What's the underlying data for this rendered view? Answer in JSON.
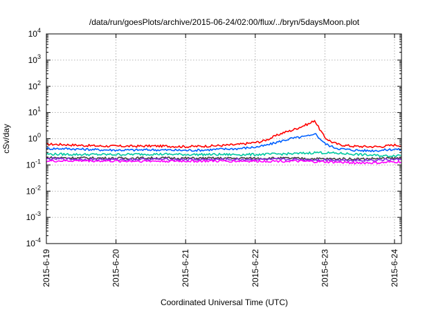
{
  "chart_data": {
    "type": "line",
    "title": "/data/run/goesPlots/archive/2015-06-24/02:00/flux/../bryn/5daysMoon.plot",
    "xlabel": "Coordinated Universal Time (UTC)",
    "ylabel": "cSv/day",
    "yscale": "log",
    "ylim": [
      0.0001,
      10000
    ],
    "xlim": [
      0,
      5.1
    ],
    "grid": true,
    "y_ticks": [
      {
        "value": 0.0001,
        "base": "10",
        "exp": "-4"
      },
      {
        "value": 0.001,
        "base": "10",
        "exp": "-3"
      },
      {
        "value": 0.01,
        "base": "10",
        "exp": "-2"
      },
      {
        "value": 0.1,
        "base": "10",
        "exp": "-1"
      },
      {
        "value": 1,
        "base": "10",
        "exp": "0"
      },
      {
        "value": 10,
        "base": "10",
        "exp": "1"
      },
      {
        "value": 100,
        "base": "10",
        "exp": "2"
      },
      {
        "value": 1000,
        "base": "10",
        "exp": "3"
      },
      {
        "value": 10000,
        "base": "10",
        "exp": "4"
      }
    ],
    "x_ticks": [
      {
        "value": 0,
        "label": "2015-6-19"
      },
      {
        "value": 1,
        "label": "2015-6-20"
      },
      {
        "value": 2,
        "label": "2015-6-21"
      },
      {
        "value": 3,
        "label": "2015-6-22"
      },
      {
        "value": 4,
        "label": "2015-6-23"
      },
      {
        "value": 5,
        "label": "2015-6-24"
      }
    ],
    "series": [
      {
        "color": "#ff0000",
        "x": [
          0,
          0.25,
          0.5,
          0.75,
          1.0,
          1.25,
          1.5,
          1.75,
          2.0,
          2.25,
          2.5,
          2.75,
          3.0,
          3.1,
          3.2,
          3.3,
          3.4,
          3.5,
          3.6,
          3.7,
          3.8,
          3.85,
          3.9,
          3.95,
          4.0,
          4.1,
          4.2,
          4.4,
          4.6,
          4.8,
          5.0,
          5.1
        ],
        "y": [
          0.62,
          0.6,
          0.56,
          0.53,
          0.52,
          0.52,
          0.53,
          0.52,
          0.5,
          0.52,
          0.55,
          0.6,
          0.72,
          0.8,
          1.0,
          1.3,
          1.7,
          2.0,
          2.5,
          3.2,
          4.0,
          5.2,
          3.0,
          1.8,
          1.1,
          0.75,
          0.6,
          0.52,
          0.5,
          0.5,
          0.58,
          0.55
        ]
      },
      {
        "color": "#0060ff",
        "x": [
          0,
          0.25,
          0.5,
          0.75,
          1.0,
          1.25,
          1.5,
          1.75,
          2.0,
          2.25,
          2.5,
          2.75,
          3.0,
          3.1,
          3.2,
          3.3,
          3.4,
          3.5,
          3.6,
          3.7,
          3.8,
          3.85,
          3.9,
          3.95,
          4.0,
          4.1,
          4.2,
          4.4,
          4.6,
          4.8,
          5.0,
          5.1
        ],
        "y": [
          0.42,
          0.42,
          0.4,
          0.38,
          0.37,
          0.37,
          0.38,
          0.37,
          0.36,
          0.37,
          0.4,
          0.42,
          0.48,
          0.52,
          0.6,
          0.72,
          0.85,
          1.0,
          1.1,
          1.2,
          1.3,
          1.7,
          1.2,
          0.9,
          0.65,
          0.5,
          0.42,
          0.37,
          0.35,
          0.36,
          0.4,
          0.38
        ]
      },
      {
        "color": "#00c8a0",
        "x": [
          0,
          0.5,
          1.0,
          1.5,
          2.0,
          2.5,
          3.0,
          3.3,
          3.6,
          3.9,
          4.0,
          4.3,
          4.6,
          4.9,
          5.1
        ],
        "y": [
          0.26,
          0.25,
          0.25,
          0.26,
          0.25,
          0.25,
          0.25,
          0.26,
          0.27,
          0.3,
          0.29,
          0.27,
          0.24,
          0.22,
          0.24
        ]
      },
      {
        "color": "#404040",
        "x": [
          0,
          0.5,
          1.0,
          1.5,
          2.0,
          2.5,
          3.0,
          3.5,
          4.0,
          4.5,
          5.0,
          5.1
        ],
        "y": [
          0.19,
          0.185,
          0.18,
          0.185,
          0.18,
          0.18,
          0.18,
          0.18,
          0.17,
          0.17,
          0.18,
          0.18
        ]
      },
      {
        "color": "#8a2be2",
        "x": [
          0,
          0.5,
          1.0,
          1.5,
          2.0,
          2.5,
          3.0,
          3.5,
          4.0,
          4.5,
          5.0,
          5.1
        ],
        "y": [
          0.17,
          0.165,
          0.16,
          0.165,
          0.16,
          0.16,
          0.16,
          0.16,
          0.155,
          0.15,
          0.16,
          0.16
        ]
      },
      {
        "color": "#ff00ff",
        "x": [
          0,
          0.5,
          1.0,
          1.5,
          2.0,
          2.5,
          3.0,
          3.5,
          4.0,
          4.5,
          4.8,
          5.0,
          5.1
        ],
        "y": [
          0.14,
          0.145,
          0.14,
          0.14,
          0.14,
          0.14,
          0.14,
          0.14,
          0.13,
          0.12,
          0.12,
          0.13,
          0.13
        ]
      }
    ]
  }
}
